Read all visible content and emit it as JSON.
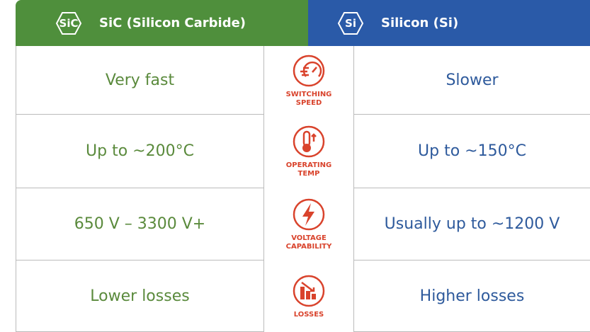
{
  "header": {
    "sic_badge": "SiC",
    "sic_title": "SiC (Silicon Carbide)",
    "si_badge": "Si",
    "si_title": "Silicon (Si)"
  },
  "rows": [
    {
      "sic": "Very fast",
      "label": [
        "SWITCHING",
        "SPEED"
      ],
      "si": "Slower"
    },
    {
      "sic": "Up to ~200°C",
      "label": [
        "OPERATING",
        "TEMP"
      ],
      "si": "Up to ~150°C"
    },
    {
      "sic": "650 V – 3300 V+",
      "label": [
        "VOLTAGE",
        "CAPABILITY"
      ],
      "si": "Usually up to ~1200 V"
    },
    {
      "sic": "Lower losses",
      "label": [
        "LOSSES"
      ],
      "si": "Higher losses"
    }
  ]
}
